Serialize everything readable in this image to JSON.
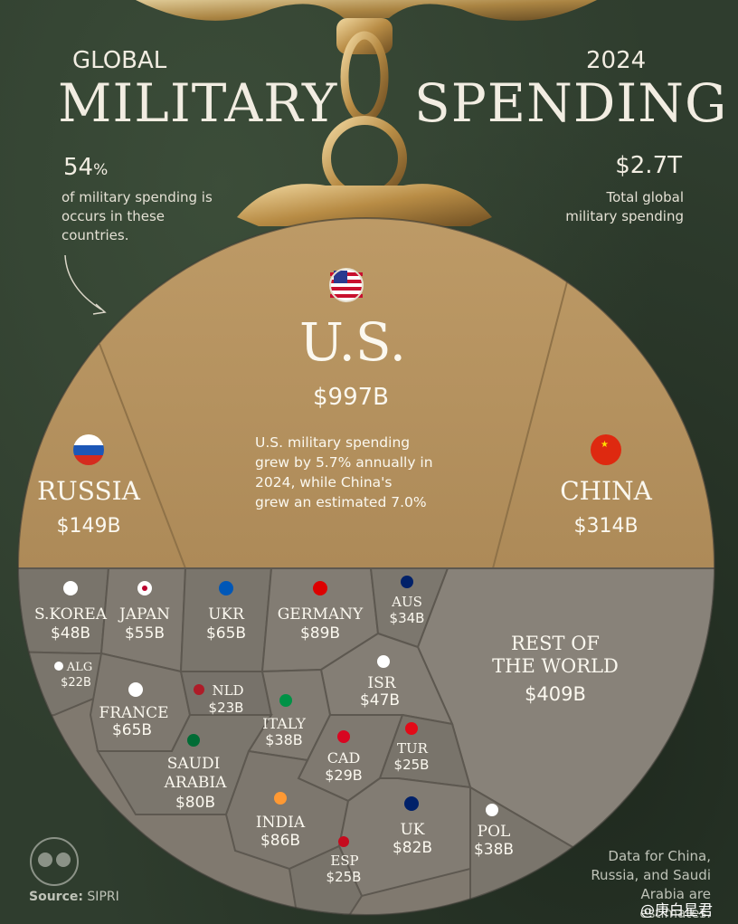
{
  "title": {
    "line1_left": "GLOBAL",
    "line2_left": "MILITARY",
    "line1_right": "2024",
    "line2_right": "SPENDING"
  },
  "callouts": {
    "share_value": "54",
    "share_unit": "%",
    "share_note": "of military spending is occurs in these countries.",
    "total_value": "$2.7T",
    "total_note_1": "Total global",
    "total_note_2": "military spending"
  },
  "us_note": {
    "line1": "U.S. military spending",
    "line2": "grew by 5.7% annually in",
    "line3": "2024, while China's",
    "line4": "grew an estimated 7.0%"
  },
  "source": {
    "label": "Source:",
    "value": "SIPRI"
  },
  "footnote": "Data for China, Russia, and Saudi Arabia are estimates.",
  "watermark": "@庚白星君",
  "colors": {
    "gold": "#b89462",
    "gray": "#7b766d",
    "bg": "#2f3d2e"
  },
  "chart_data": {
    "type": "treemap",
    "title": "GLOBAL MILITARY SPENDING 2024",
    "unit": "USD billions",
    "total": "$2.7T",
    "top_group": [
      {
        "label": "U.S.",
        "value": 997,
        "display": "$997B",
        "flag": "us-flag-icon"
      },
      {
        "label": "CHINA",
        "value": 314,
        "display": "$314B",
        "flag": "china-flag-icon"
      },
      {
        "label": "RUSSIA",
        "value": 149,
        "display": "$149B",
        "flag": "russia-flag-icon"
      }
    ],
    "others": [
      {
        "label": "S.KOREA",
        "value": 48,
        "display": "$48B"
      },
      {
        "label": "JAPAN",
        "value": 55,
        "display": "$55B"
      },
      {
        "label": "UKR",
        "value": 65,
        "display": "$65B"
      },
      {
        "label": "GERMANY",
        "value": 89,
        "display": "$89B"
      },
      {
        "label": "AUS",
        "value": 34,
        "display": "$34B"
      },
      {
        "label": "REST OF THE WORLD",
        "value": 409,
        "display": "$409B"
      },
      {
        "label": "ALG",
        "value": 22,
        "display": "$22B"
      },
      {
        "label": "FRANCE",
        "value": 65,
        "display": "$65B"
      },
      {
        "label": "NLD",
        "value": 23,
        "display": "$23B"
      },
      {
        "label": "ISR",
        "value": 47,
        "display": "$47B"
      },
      {
        "label": "ITALY",
        "value": 38,
        "display": "$38B"
      },
      {
        "label": "SAUDI ARABIA",
        "value": 80,
        "display": "$80B"
      },
      {
        "label": "CAD",
        "value": 29,
        "display": "$29B"
      },
      {
        "label": "TUR",
        "value": 25,
        "display": "$25B"
      },
      {
        "label": "INDIA",
        "value": 86,
        "display": "$86B"
      },
      {
        "label": "UK",
        "value": 82,
        "display": "$82B"
      },
      {
        "label": "POL",
        "value": 38,
        "display": "$38B"
      },
      {
        "label": "ESP",
        "value": 25,
        "display": "$25B"
      }
    ]
  }
}
